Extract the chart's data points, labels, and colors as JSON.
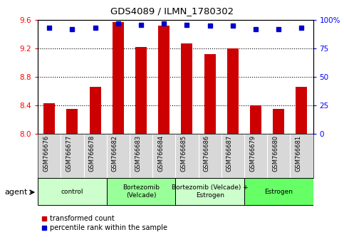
{
  "title": "GDS4089 / ILMN_1780302",
  "samples": [
    "GSM766676",
    "GSM766677",
    "GSM766678",
    "GSM766682",
    "GSM766683",
    "GSM766684",
    "GSM766685",
    "GSM766686",
    "GSM766687",
    "GSM766679",
    "GSM766680",
    "GSM766681"
  ],
  "transformed_count": [
    8.43,
    8.35,
    8.66,
    9.57,
    9.22,
    9.52,
    9.27,
    9.12,
    9.2,
    8.4,
    8.35,
    8.66
  ],
  "percentile_rank": [
    93,
    92,
    93,
    97,
    96,
    97,
    96,
    95,
    95,
    92,
    92,
    93
  ],
  "bar_color": "#cc0000",
  "dot_color": "#0000cc",
  "ylim_left": [
    8.0,
    9.6
  ],
  "ylim_right": [
    0,
    100
  ],
  "yticks_left": [
    8.0,
    8.4,
    8.8,
    9.2,
    9.6
  ],
  "yticks_right": [
    0,
    25,
    50,
    75,
    100
  ],
  "groups": [
    {
      "label": "control",
      "start": 0,
      "end": 3,
      "color": "#ccffcc"
    },
    {
      "label": "Bortezomib\n(Velcade)",
      "start": 3,
      "end": 6,
      "color": "#99ff99"
    },
    {
      "label": "Bortezomib (Velcade) +\nEstrogen",
      "start": 6,
      "end": 9,
      "color": "#ccffcc"
    },
    {
      "label": "Estrogen",
      "start": 9,
      "end": 12,
      "color": "#66ff66"
    }
  ],
  "agent_label": "agent",
  "legend_red": "transformed count",
  "legend_blue": "percentile rank within the sample",
  "bar_width": 0.5,
  "figsize": [
    4.83,
    3.54
  ],
  "dpi": 100
}
